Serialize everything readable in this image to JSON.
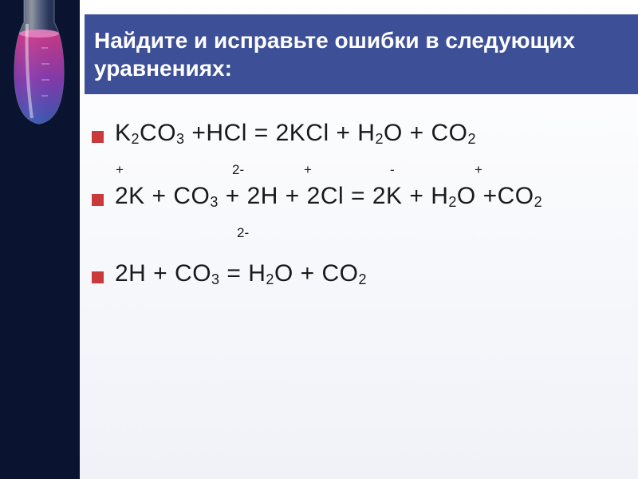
{
  "slide": {
    "title": "Найдите и исправьте ошибки в следующих уравнениях:",
    "equations": {
      "eq1": {
        "parts": [
          "K",
          "2",
          "CO",
          "3",
          " +HCl = 2KCl + H",
          "2",
          "O + CO",
          "2"
        ]
      },
      "charges1": [
        {
          "t": "+",
          "w": 60
        },
        {
          "t": "",
          "w": 86
        },
        {
          "t": "2-",
          "w": 82
        },
        {
          "t": "",
          "w": 8
        },
        {
          "t": "+",
          "w": 108
        },
        {
          "t": "-",
          "w": 106
        },
        {
          "t": "+",
          "w": 0
        }
      ],
      "eq2": {
        "parts": [
          "2K + CO",
          "3",
          " + 2H + 2Cl = 2K + H",
          "2",
          "O +CO",
          "2"
        ]
      },
      "charges2": [
        {
          "t": "",
          "w": 152
        },
        {
          "t": "2-",
          "w": 0
        }
      ],
      "eq3": {
        "parts": [
          "2H + CO",
          "3",
          " = H",
          "2",
          "O + CO",
          "2"
        ]
      }
    },
    "colors": {
      "title_band": "#3d4f97",
      "flask_bg": "#0a1430",
      "bullet": "#c93a3a",
      "text": "#1a1a1a",
      "title_text": "#ffffff"
    }
  }
}
